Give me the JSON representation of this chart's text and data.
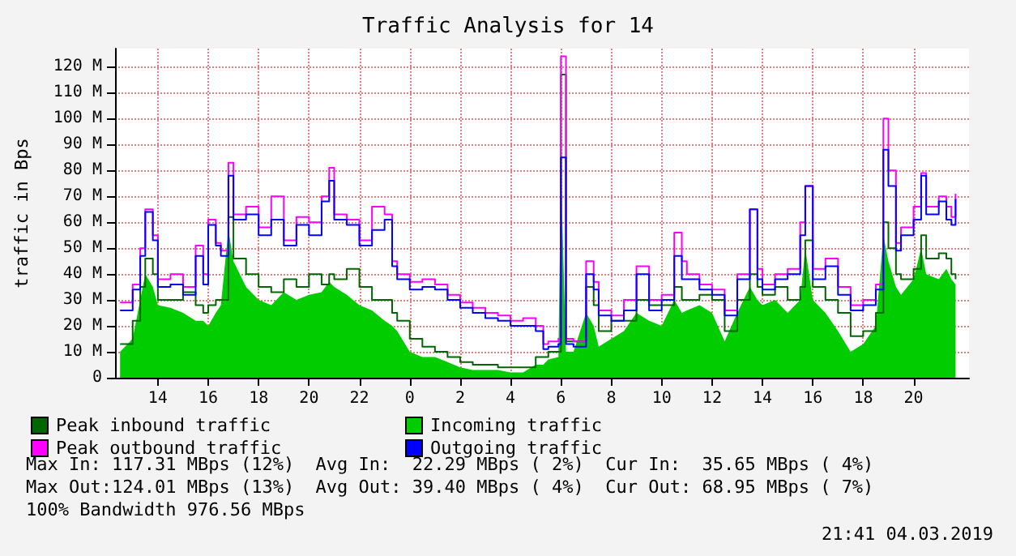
{
  "chart_data": {
    "type": "step",
    "title": "Traffic Analysis for 14",
    "ylabel": "traffic in Bps",
    "x": [
      "2019-03-03T12:30",
      "2019-03-03T13:00",
      "2019-03-03T13:18",
      "2019-03-03T13:30",
      "2019-03-03T13:48",
      "2019-03-03T14:00",
      "2019-03-03T14:30",
      "2019-03-03T15:00",
      "2019-03-03T15:30",
      "2019-03-03T15:48",
      "2019-03-03T16:00",
      "2019-03-03T16:18",
      "2019-03-03T16:30",
      "2019-03-03T16:48",
      "2019-03-03T17:00",
      "2019-03-03T17:30",
      "2019-03-03T18:00",
      "2019-03-03T18:30",
      "2019-03-03T19:00",
      "2019-03-03T19:30",
      "2019-03-03T20:00",
      "2019-03-03T20:30",
      "2019-03-03T20:48",
      "2019-03-03T21:00",
      "2019-03-03T21:30",
      "2019-03-03T22:00",
      "2019-03-03T22:30",
      "2019-03-03T23:00",
      "2019-03-03T23:18",
      "2019-03-03T23:30",
      "2019-03-04T00:00",
      "2019-03-04T00:30",
      "2019-03-04T01:00",
      "2019-03-04T01:30",
      "2019-03-04T02:00",
      "2019-03-04T02:30",
      "2019-03-04T03:00",
      "2019-03-04T03:30",
      "2019-03-04T04:00",
      "2019-03-04T04:30",
      "2019-03-04T05:00",
      "2019-03-04T05:18",
      "2019-03-04T05:30",
      "2019-03-04T05:54",
      "2019-03-04T06:00",
      "2019-03-04T06:12",
      "2019-03-04T06:30",
      "2019-03-04T07:00",
      "2019-03-04T07:18",
      "2019-03-04T07:30",
      "2019-03-04T08:00",
      "2019-03-04T08:30",
      "2019-03-04T09:00",
      "2019-03-04T09:30",
      "2019-03-04T10:00",
      "2019-03-04T10:30",
      "2019-03-04T10:48",
      "2019-03-04T11:00",
      "2019-03-04T11:30",
      "2019-03-04T12:00",
      "2019-03-04T12:30",
      "2019-03-04T13:00",
      "2019-03-04T13:30",
      "2019-03-04T13:48",
      "2019-03-04T14:00",
      "2019-03-04T14:30",
      "2019-03-04T15:00",
      "2019-03-04T15:30",
      "2019-03-04T15:42",
      "2019-03-04T16:00",
      "2019-03-04T16:30",
      "2019-03-04T17:00",
      "2019-03-04T17:30",
      "2019-03-04T18:00",
      "2019-03-04T18:30",
      "2019-03-04T18:48",
      "2019-03-04T19:00",
      "2019-03-04T19:18",
      "2019-03-04T19:30",
      "2019-03-04T20:00",
      "2019-03-04T20:18",
      "2019-03-04T20:30",
      "2019-03-04T21:00",
      "2019-03-04T21:18",
      "2019-03-04T21:30",
      "2019-03-04T21:40"
    ],
    "series": [
      {
        "name": "Incoming traffic",
        "type": "area",
        "color": "#00cc00",
        "values": [
          10,
          15,
          30,
          40,
          35,
          28,
          27,
          25,
          22,
          22,
          20,
          25,
          28,
          57,
          45,
          35,
          30,
          28,
          33,
          30,
          32,
          33,
          37,
          35,
          32,
          28,
          26,
          22,
          20,
          18,
          10,
          8,
          8,
          6,
          4,
          3,
          3,
          3,
          2,
          2,
          5,
          5,
          7,
          8,
          80,
          10,
          10,
          25,
          20,
          12,
          15,
          18,
          25,
          22,
          20,
          30,
          25,
          26,
          28,
          25,
          14,
          25,
          35,
          30,
          28,
          30,
          25,
          30,
          50,
          30,
          25,
          18,
          10,
          13,
          20,
          55,
          45,
          35,
          32,
          38,
          50,
          40,
          38,
          42,
          38,
          36
        ]
      },
      {
        "name": "Peak inbound traffic",
        "color": "#006600",
        "values": [
          13,
          22,
          35,
          46,
          40,
          30,
          30,
          33,
          28,
          25,
          28,
          30,
          30,
          62,
          46,
          40,
          35,
          33,
          38,
          35,
          40,
          36,
          40,
          38,
          42,
          35,
          30,
          30,
          25,
          22,
          15,
          12,
          10,
          8,
          6,
          5,
          5,
          4,
          4,
          4,
          8,
          8,
          10,
          10,
          117,
          14,
          14,
          35,
          28,
          18,
          22,
          22,
          30,
          28,
          28,
          35,
          30,
          30,
          32,
          30,
          18,
          30,
          40,
          35,
          32,
          35,
          30,
          35,
          53,
          35,
          30,
          25,
          16,
          18,
          25,
          60,
          50,
          40,
          38,
          42,
          55,
          46,
          48,
          46,
          40,
          38
        ]
      },
      {
        "name": "Peak outbound traffic",
        "color": "#ff00ff",
        "values": [
          29,
          36,
          50,
          65,
          55,
          38,
          40,
          35,
          51,
          40,
          61,
          52,
          49,
          83,
          63,
          66,
          58,
          70,
          53,
          62,
          60,
          70,
          81,
          63,
          61,
          53,
          66,
          63,
          45,
          40,
          37,
          38,
          36,
          32,
          29,
          27,
          25,
          24,
          22,
          23,
          20,
          13,
          14,
          15,
          124,
          15,
          14,
          45,
          37,
          26,
          24,
          30,
          43,
          30,
          32,
          56,
          45,
          40,
          36,
          34,
          26,
          40,
          65,
          42,
          36,
          40,
          42,
          60,
          74,
          42,
          46,
          35,
          28,
          30,
          36,
          100,
          80,
          52,
          58,
          66,
          79,
          66,
          70,
          66,
          62,
          71
        ]
      },
      {
        "name": "Outgoing traffic",
        "color": "#0000ff",
        "values": [
          26,
          34,
          47,
          64,
          53,
          35,
          36,
          32,
          47,
          36,
          59,
          51,
          47,
          78,
          61,
          63,
          55,
          61,
          51,
          59,
          55,
          68,
          76,
          61,
          59,
          51,
          57,
          61,
          43,
          38,
          34,
          35,
          34,
          30,
          27,
          25,
          23,
          22,
          20,
          20,
          18,
          11,
          12,
          13,
          85,
          13,
          12,
          40,
          34,
          24,
          22,
          26,
          40,
          26,
          30,
          47,
          38,
          38,
          34,
          32,
          24,
          38,
          65,
          38,
          34,
          38,
          40,
          55,
          74,
          38,
          43,
          32,
          26,
          28,
          34,
          88,
          74,
          49,
          55,
          61,
          78,
          63,
          68,
          61,
          59,
          69
        ]
      }
    ],
    "xlim": [
      "2019-03-03T12:18",
      "2019-03-04T22:12"
    ],
    "xticks": [
      {
        "value": "2019-03-03T14:00",
        "label": "14"
      },
      {
        "value": "2019-03-03T16:00",
        "label": "16"
      },
      {
        "value": "2019-03-03T18:00",
        "label": "18"
      },
      {
        "value": "2019-03-03T20:00",
        "label": "20"
      },
      {
        "value": "2019-03-03T22:00",
        "label": "22"
      },
      {
        "value": "2019-03-04T00:00",
        "label": "0"
      },
      {
        "value": "2019-03-04T02:00",
        "label": "2"
      },
      {
        "value": "2019-03-04T04:00",
        "label": "4"
      },
      {
        "value": "2019-03-04T06:00",
        "label": "6"
      },
      {
        "value": "2019-03-04T08:00",
        "label": "8"
      },
      {
        "value": "2019-03-04T10:00",
        "label": "10"
      },
      {
        "value": "2019-03-04T12:00",
        "label": "12"
      },
      {
        "value": "2019-03-04T14:00",
        "label": "14"
      },
      {
        "value": "2019-03-04T16:00",
        "label": "16"
      },
      {
        "value": "2019-03-04T18:00",
        "label": "18"
      },
      {
        "value": "2019-03-04T20:00",
        "label": "20"
      }
    ],
    "ylim": [
      0,
      127
    ],
    "yticks": [
      0,
      {
        "value": 10,
        "label": "10 M"
      },
      {
        "value": 20,
        "label": "20 M"
      },
      {
        "value": 30,
        "label": "30 M"
      },
      {
        "value": 40,
        "label": "40 M"
      },
      {
        "value": 50,
        "label": "50 M"
      },
      {
        "value": 60,
        "label": "60 M"
      },
      {
        "value": 70,
        "label": "70 M"
      },
      {
        "value": 80,
        "label": "80 M"
      },
      {
        "value": 90,
        "label": "90 M"
      },
      {
        "value": 100,
        "label": "100 M"
      },
      {
        "value": 110,
        "label": "110 M"
      },
      {
        "value": 120,
        "label": "120 M"
      }
    ],
    "grid": true,
    "legend": "bottom left",
    "marker": "none",
    "annotations": [
      "Max In: 117.31 MBps (12%)  Avg In:  22.29 MBps ( 2%)  Cur In:  35.65 MBps ( 4%)",
      "Max Out:124.01 MBps (13%)  Avg Out: 39.40 MBps ( 4%)  Cur Out: 68.95 MBps ( 7%)",
      "100% Bandwidth 976.56 MBps",
      "21:41 04.03.2019"
    ]
  }
}
